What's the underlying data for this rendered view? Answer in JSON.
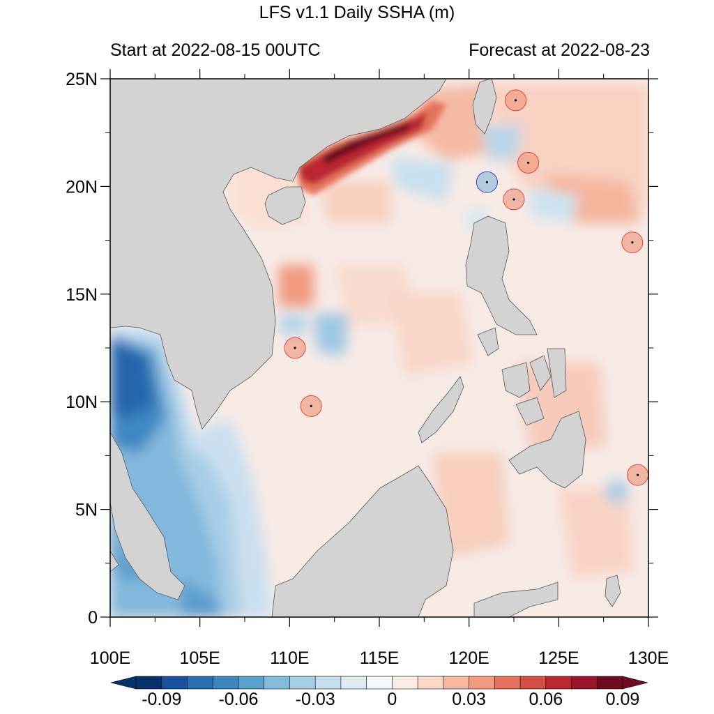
{
  "title": "LFS v1.1 Daily SSHA (m)",
  "start_text": "Start at 2022-08-15 00UTC",
  "forecast_text": "Forecast at 2022-08-23",
  "axes": {
    "lat_ticks": [
      {
        "value": 0,
        "label": "0"
      },
      {
        "value": 5,
        "label": "5N"
      },
      {
        "value": 10,
        "label": "10N"
      },
      {
        "value": 15,
        "label": "15N"
      },
      {
        "value": 20,
        "label": "20N"
      },
      {
        "value": 25,
        "label": "25N"
      }
    ],
    "lon_ticks": [
      {
        "value": 100,
        "label": "100E"
      },
      {
        "value": 105,
        "label": "105E"
      },
      {
        "value": 110,
        "label": "110E"
      },
      {
        "value": 115,
        "label": "115E"
      },
      {
        "value": 120,
        "label": "120E"
      },
      {
        "value": 125,
        "label": "125E"
      },
      {
        "value": 130,
        "label": "130E"
      }
    ],
    "lon_range": [
      100,
      130
    ],
    "lat_range": [
      0,
      25
    ]
  },
  "colorbar": {
    "levels": [
      -0.09,
      -0.08,
      -0.07,
      -0.06,
      -0.05,
      -0.04,
      -0.03,
      -0.02,
      -0.01,
      0,
      0.01,
      0.02,
      0.03,
      0.04,
      0.05,
      0.06,
      0.07,
      0.08,
      0.09
    ],
    "colors": [
      "#08306b",
      "#16529e",
      "#2a6db1",
      "#3d86c0",
      "#5aa0cd",
      "#82bbdb",
      "#a6cfe4",
      "#c6dfee",
      "#e0ecf4",
      "#f4f7f9",
      "#fbeee7",
      "#fbd8c8",
      "#f7b8a0",
      "#f29a7e",
      "#e5735c",
      "#d44e44",
      "#bb2830",
      "#99132a",
      "#6f0a20"
    ],
    "labels": [
      {
        "value": -0.09,
        "label": "-0.09"
      },
      {
        "value": -0.06,
        "label": "-0.06"
      },
      {
        "value": -0.03,
        "label": "-0.03"
      },
      {
        "value": 0,
        "label": "0"
      },
      {
        "value": 0.03,
        "label": "0.03"
      },
      {
        "value": 0.06,
        "label": "0.06"
      },
      {
        "value": 0.09,
        "label": "0.09"
      }
    ]
  },
  "eddies": [
    {
      "lon": 122.6,
      "lat": 24.0,
      "type": "warm"
    },
    {
      "lon": 123.3,
      "lat": 21.1,
      "type": "warm"
    },
    {
      "lon": 122.5,
      "lat": 19.4,
      "type": "warm"
    },
    {
      "lon": 121.0,
      "lat": 20.2,
      "type": "cold"
    },
    {
      "lon": 129.1,
      "lat": 17.4,
      "type": "warm"
    },
    {
      "lon": 110.3,
      "lat": 12.5,
      "type": "warm"
    },
    {
      "lon": 111.2,
      "lat": 9.8,
      "type": "warm"
    },
    {
      "lon": 129.4,
      "lat": 6.6,
      "type": "warm"
    }
  ],
  "colors": {
    "land": "#d3d3d3",
    "ocean_base": "#f6e8e2",
    "warm_eddy_edge": "#e8413a",
    "cold_eddy_edge": "#2c3fd1"
  }
}
